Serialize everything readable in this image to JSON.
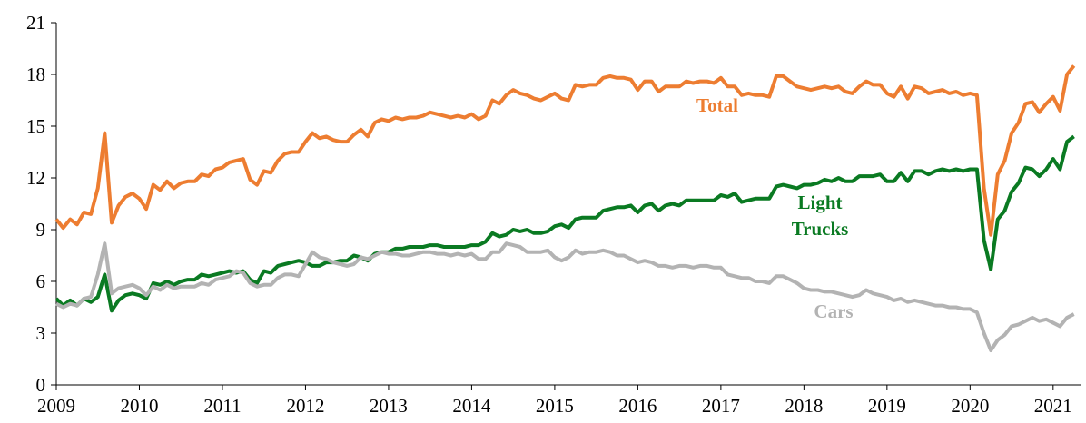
{
  "chart_data": {
    "type": "line",
    "x": [
      2009,
      2009.083,
      2009.167,
      2009.25,
      2009.333,
      2009.417,
      2009.5,
      2009.583,
      2009.667,
      2009.75,
      2009.833,
      2009.917,
      2010,
      2010.083,
      2010.167,
      2010.25,
      2010.333,
      2010.417,
      2010.5,
      2010.583,
      2010.667,
      2010.75,
      2010.833,
      2010.917,
      2011,
      2011.083,
      2011.167,
      2011.25,
      2011.333,
      2011.417,
      2011.5,
      2011.583,
      2011.667,
      2011.75,
      2011.833,
      2011.917,
      2012,
      2012.083,
      2012.167,
      2012.25,
      2012.333,
      2012.417,
      2012.5,
      2012.583,
      2012.667,
      2012.75,
      2012.833,
      2012.917,
      2013,
      2013.083,
      2013.167,
      2013.25,
      2013.333,
      2013.417,
      2013.5,
      2013.583,
      2013.667,
      2013.75,
      2013.833,
      2013.917,
      2014,
      2014.083,
      2014.167,
      2014.25,
      2014.333,
      2014.417,
      2014.5,
      2014.583,
      2014.667,
      2014.75,
      2014.833,
      2014.917,
      2015,
      2015.083,
      2015.167,
      2015.25,
      2015.333,
      2015.417,
      2015.5,
      2015.583,
      2015.667,
      2015.75,
      2015.833,
      2015.917,
      2016,
      2016.083,
      2016.167,
      2016.25,
      2016.333,
      2016.417,
      2016.5,
      2016.583,
      2016.667,
      2016.75,
      2016.833,
      2016.917,
      2017,
      2017.083,
      2017.167,
      2017.25,
      2017.333,
      2017.417,
      2017.5,
      2017.583,
      2017.667,
      2017.75,
      2017.833,
      2017.917,
      2018,
      2018.083,
      2018.167,
      2018.25,
      2018.333,
      2018.417,
      2018.5,
      2018.583,
      2018.667,
      2018.75,
      2018.833,
      2018.917,
      2019,
      2019.083,
      2019.167,
      2019.25,
      2019.333,
      2019.417,
      2019.5,
      2019.583,
      2019.667,
      2019.75,
      2019.833,
      2019.917,
      2020,
      2020.083,
      2020.167,
      2020.25,
      2020.333,
      2020.417,
      2020.5,
      2020.583,
      2020.667,
      2020.75,
      2020.833,
      2020.917,
      2021,
      2021.083,
      2021.167,
      2021.25
    ],
    "series": [
      {
        "name": "Total",
        "color": "#ed7d31",
        "values": [
          9.6,
          9.1,
          9.6,
          9.3,
          10.0,
          9.9,
          11.4,
          14.6,
          9.4,
          10.4,
          10.9,
          11.1,
          10.8,
          10.2,
          11.6,
          11.3,
          11.8,
          11.4,
          11.7,
          11.8,
          11.8,
          12.2,
          12.1,
          12.5,
          12.6,
          12.9,
          13.0,
          13.1,
          11.9,
          11.6,
          12.4,
          12.3,
          13.0,
          13.4,
          13.5,
          13.5,
          14.1,
          14.6,
          14.3,
          14.4,
          14.2,
          14.1,
          14.1,
          14.5,
          14.8,
          14.4,
          15.2,
          15.4,
          15.3,
          15.5,
          15.4,
          15.5,
          15.5,
          15.6,
          15.8,
          15.7,
          15.6,
          15.5,
          15.6,
          15.5,
          15.7,
          15.4,
          15.6,
          16.5,
          16.3,
          16.8,
          17.1,
          16.9,
          16.8,
          16.6,
          16.5,
          16.7,
          16.9,
          16.6,
          16.5,
          17.4,
          17.3,
          17.4,
          17.4,
          17.8,
          17.9,
          17.8,
          17.8,
          17.7,
          17.1,
          17.6,
          17.6,
          17.0,
          17.3,
          17.3,
          17.3,
          17.6,
          17.5,
          17.6,
          17.6,
          17.5,
          17.8,
          17.3,
          17.3,
          16.8,
          16.9,
          16.8,
          16.8,
          16.7,
          17.9,
          17.9,
          17.6,
          17.3,
          17.2,
          17.1,
          17.2,
          17.3,
          17.2,
          17.3,
          17.0,
          16.9,
          17.3,
          17.6,
          17.4,
          17.4,
          16.9,
          16.7,
          17.3,
          16.6,
          17.3,
          17.2,
          16.9,
          17.0,
          17.1,
          16.9,
          17.0,
          16.8,
          16.9,
          16.8,
          11.4,
          8.7,
          12.2,
          13.0,
          14.6,
          15.2,
          16.3,
          16.4,
          15.8,
          16.3,
          16.7,
          15.9,
          18.0,
          18.5
        ]
      },
      {
        "name": "Light Trucks",
        "color": "#0a7a22",
        "values": [
          5.0,
          4.6,
          4.9,
          4.6,
          5.0,
          4.8,
          5.1,
          6.4,
          4.3,
          4.9,
          5.2,
          5.3,
          5.2,
          5.0,
          5.9,
          5.8,
          6.0,
          5.8,
          6.0,
          6.1,
          6.1,
          6.4,
          6.3,
          6.4,
          6.5,
          6.6,
          6.5,
          6.6,
          6.1,
          5.9,
          6.6,
          6.5,
          6.9,
          7.0,
          7.1,
          7.2,
          7.1,
          6.9,
          6.9,
          7.1,
          7.1,
          7.2,
          7.2,
          7.5,
          7.4,
          7.2,
          7.6,
          7.7,
          7.7,
          7.9,
          7.9,
          8.0,
          8.0,
          8.0,
          8.1,
          8.1,
          8.0,
          8.0,
          8.0,
          8.0,
          8.1,
          8.1,
          8.3,
          8.8,
          8.6,
          8.7,
          9.0,
          8.9,
          9.0,
          8.8,
          8.8,
          8.9,
          9.2,
          9.3,
          9.1,
          9.6,
          9.7,
          9.7,
          9.7,
          10.1,
          10.2,
          10.3,
          10.3,
          10.4,
          10.0,
          10.4,
          10.5,
          10.1,
          10.4,
          10.5,
          10.4,
          10.7,
          10.7,
          10.7,
          10.7,
          10.7,
          11.0,
          10.9,
          11.1,
          10.6,
          10.7,
          10.8,
          10.8,
          10.8,
          11.5,
          11.6,
          11.5,
          11.4,
          11.6,
          11.6,
          11.7,
          11.9,
          11.8,
          12.0,
          11.8,
          11.8,
          12.1,
          12.1,
          12.1,
          12.2,
          11.8,
          11.8,
          12.3,
          11.8,
          12.4,
          12.4,
          12.2,
          12.4,
          12.5,
          12.4,
          12.5,
          12.4,
          12.5,
          12.5,
          8.4,
          6.7,
          9.6,
          10.1,
          11.2,
          11.7,
          12.6,
          12.5,
          12.1,
          12.5,
          13.1,
          12.5,
          14.1,
          14.4
        ]
      },
      {
        "name": "Cars",
        "color": "#b3b3b3",
        "values": [
          4.7,
          4.5,
          4.7,
          4.6,
          5.0,
          5.1,
          6.4,
          8.2,
          5.3,
          5.6,
          5.7,
          5.8,
          5.6,
          5.2,
          5.7,
          5.5,
          5.8,
          5.6,
          5.7,
          5.7,
          5.7,
          5.9,
          5.8,
          6.1,
          6.2,
          6.3,
          6.6,
          6.5,
          5.9,
          5.7,
          5.8,
          5.8,
          6.2,
          6.4,
          6.4,
          6.3,
          7.0,
          7.7,
          7.4,
          7.3,
          7.1,
          7.0,
          6.9,
          7.0,
          7.4,
          7.3,
          7.5,
          7.7,
          7.6,
          7.6,
          7.5,
          7.5,
          7.6,
          7.7,
          7.7,
          7.6,
          7.6,
          7.5,
          7.6,
          7.5,
          7.6,
          7.3,
          7.3,
          7.7,
          7.7,
          8.2,
          8.1,
          8.0,
          7.7,
          7.7,
          7.7,
          7.8,
          7.4,
          7.2,
          7.4,
          7.8,
          7.6,
          7.7,
          7.7,
          7.8,
          7.7,
          7.5,
          7.5,
          7.3,
          7.1,
          7.2,
          7.1,
          6.9,
          6.9,
          6.8,
          6.9,
          6.9,
          6.8,
          6.9,
          6.9,
          6.8,
          6.8,
          6.4,
          6.3,
          6.2,
          6.2,
          6.0,
          6.0,
          5.9,
          6.3,
          6.3,
          6.1,
          5.9,
          5.6,
          5.5,
          5.5,
          5.4,
          5.4,
          5.3,
          5.2,
          5.1,
          5.2,
          5.5,
          5.3,
          5.2,
          5.1,
          4.9,
          5.0,
          4.8,
          4.9,
          4.8,
          4.7,
          4.6,
          4.6,
          4.5,
          4.5,
          4.4,
          4.4,
          4.2,
          3.0,
          2.0,
          2.6,
          2.9,
          3.4,
          3.5,
          3.7,
          3.9,
          3.7,
          3.8,
          3.6,
          3.4,
          3.9,
          4.1
        ]
      }
    ],
    "xlim": [
      2009,
      2021.33
    ],
    "xticks": [
      2009,
      2010,
      2011,
      2012,
      2013,
      2014,
      2015,
      2016,
      2017,
      2018,
      2019,
      2020,
      2021
    ],
    "ylim": [
      0,
      21
    ],
    "yticks": [
      0,
      3,
      6,
      9,
      12,
      15,
      18,
      21
    ],
    "grid": false
  }
}
